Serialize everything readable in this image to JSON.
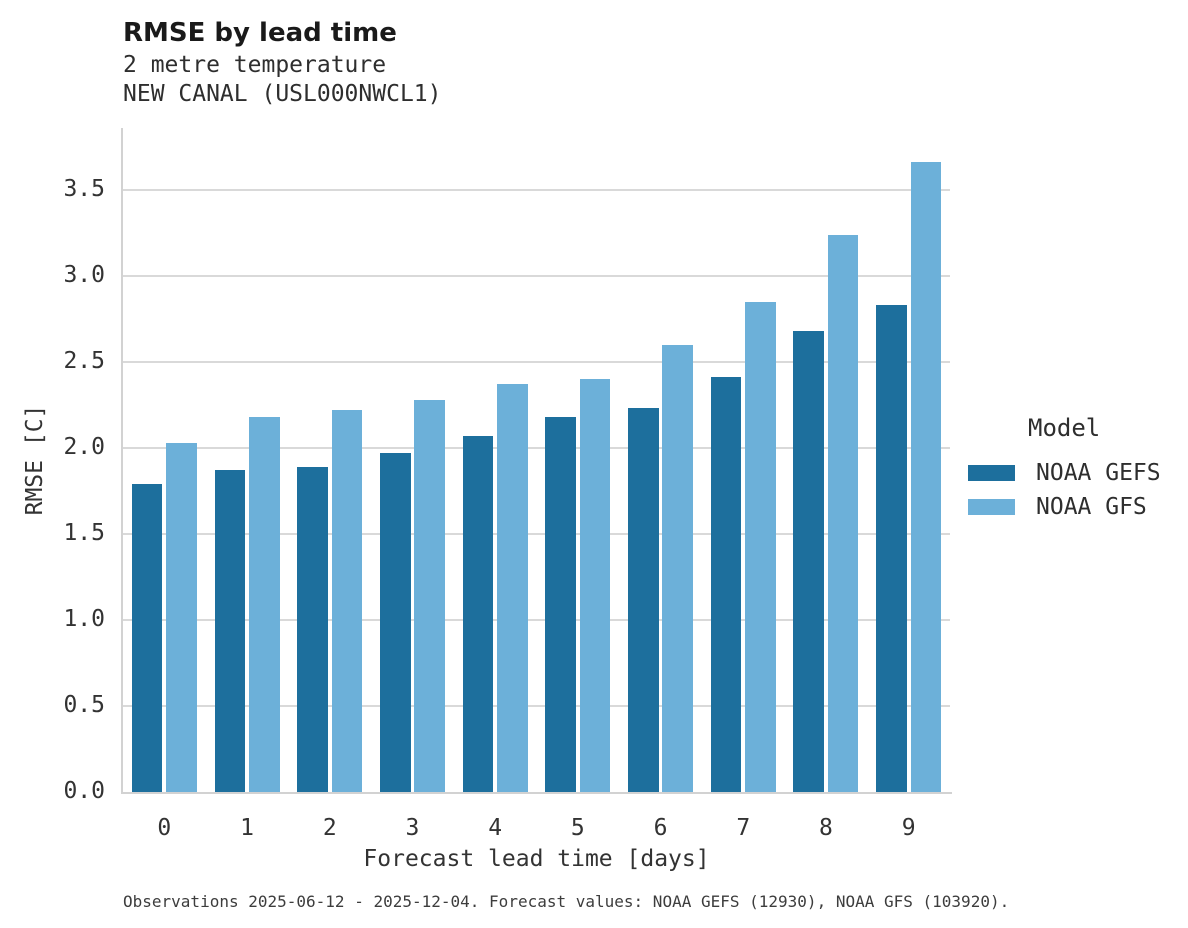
{
  "chart_data": {
    "type": "bar",
    "title": "RMSE by lead time",
    "subtitle_line1": "2 metre temperature",
    "subtitle_line2": "NEW CANAL (USL000NWCL1)",
    "xlabel": "Forecast lead time [days]",
    "ylabel": "RMSE [C]",
    "categories": [
      "0",
      "1",
      "2",
      "3",
      "4",
      "5",
      "6",
      "7",
      "8",
      "9"
    ],
    "series": [
      {
        "name": "NOAA GEFS",
        "color": "#1D6F9D",
        "values": [
          1.79,
          1.87,
          1.89,
          1.97,
          2.07,
          2.18,
          2.23,
          2.41,
          2.68,
          2.83
        ]
      },
      {
        "name": "NOAA GFS",
        "color": "#6CB0D9",
        "values": [
          2.03,
          2.18,
          2.22,
          2.28,
          2.37,
          2.4,
          2.6,
          2.85,
          3.24,
          3.66
        ]
      }
    ],
    "ylim": [
      0,
      3.86
    ],
    "yticks": [
      0.0,
      0.5,
      1.0,
      1.5,
      2.0,
      2.5,
      3.0,
      3.5
    ],
    "grid": "horizontal",
    "legend_position": "right",
    "legend_title": "Model",
    "footnote": "Observations 2025-06-12 - 2025-12-04. Forecast values: NOAA GEFS (12930), NOAA GFS (103920)."
  }
}
